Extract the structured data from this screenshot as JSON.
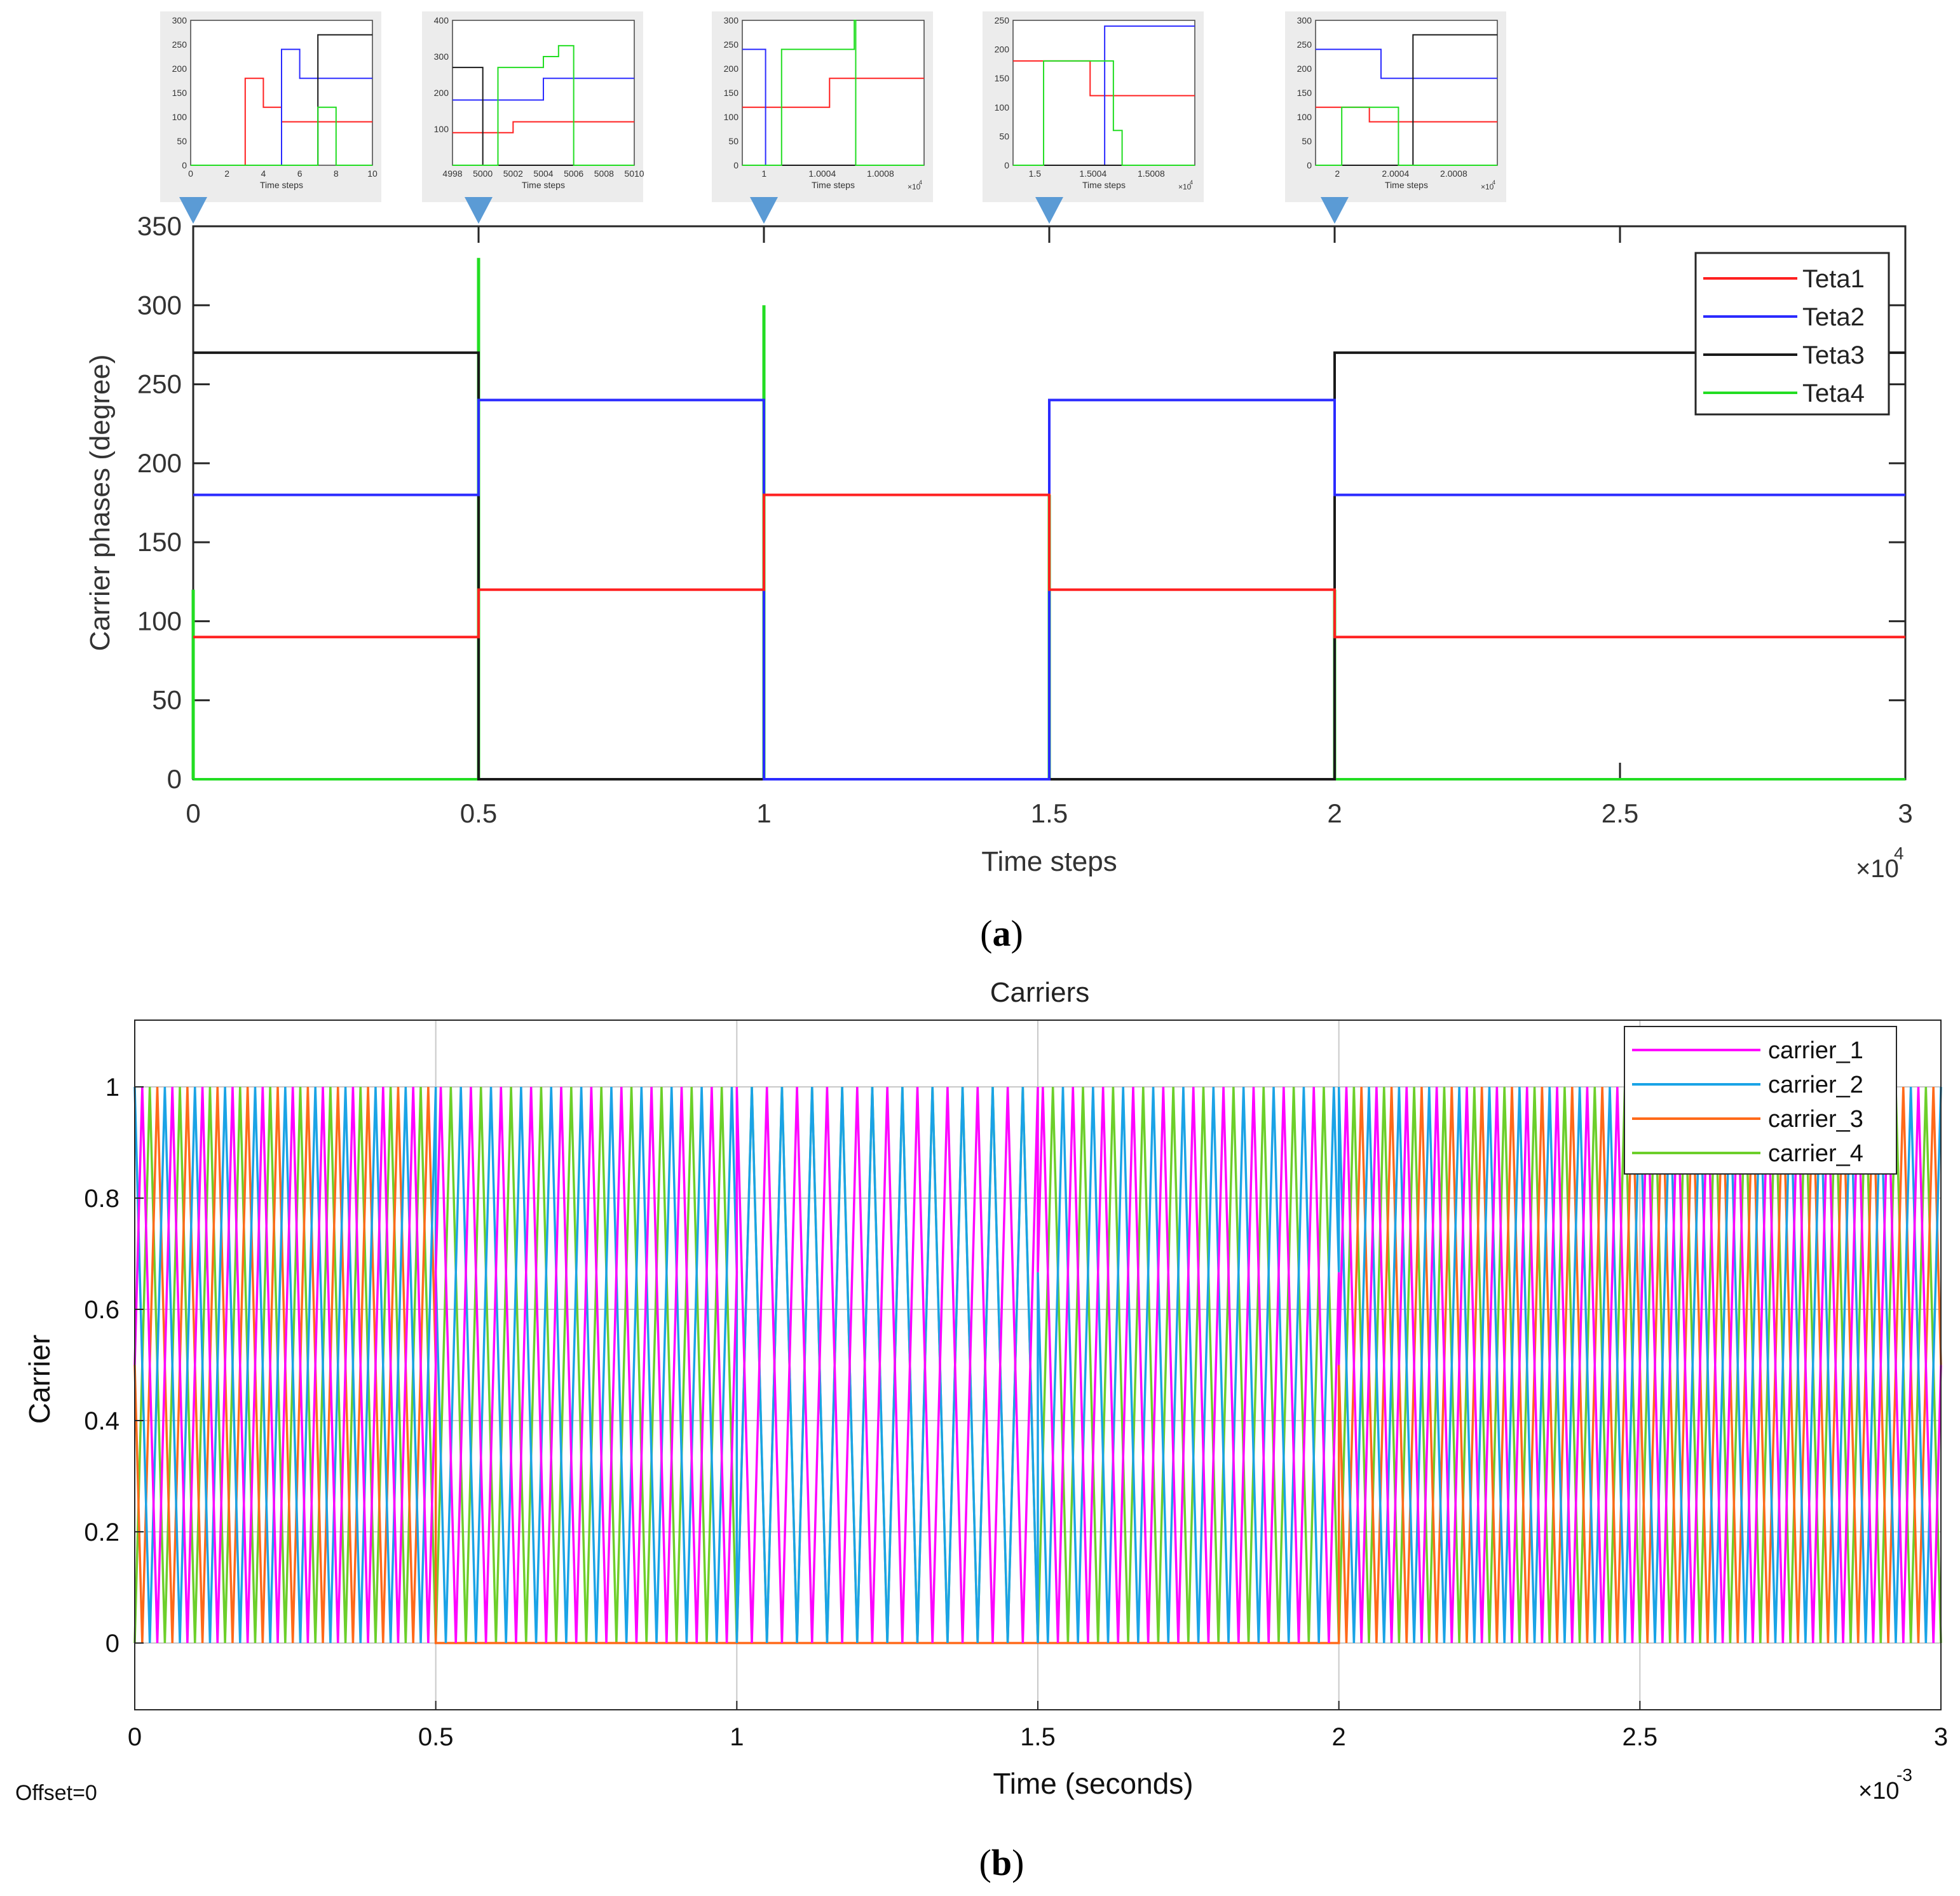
{
  "chart_data": [
    {
      "id": "a",
      "type": "line",
      "panel_label": "a",
      "title": "",
      "xlabel": "Time steps",
      "ylabel": "Carrier phases (degree)",
      "x_multiplier": "×10",
      "x_multiplier_exp": "4",
      "xlim": [
        0,
        3
      ],
      "ylim": [
        0,
        350
      ],
      "xticks": [
        "0",
        "0.5",
        "1",
        "1.5",
        "2",
        "2.5",
        "3"
      ],
      "yticks": [
        "0",
        "50",
        "100",
        "150",
        "200",
        "250",
        "300",
        "350"
      ],
      "grid": false,
      "legend_position": "top-right",
      "series": [
        {
          "name": "Teta1",
          "color": "#ff2020",
          "segments": [
            [
              0,
              0.5,
              90
            ],
            [
              0.5,
              1,
              120
            ],
            [
              1,
              1.5,
              180
            ],
            [
              1.5,
              2,
              120
            ],
            [
              2,
              3,
              90
            ]
          ]
        },
        {
          "name": "Teta2",
          "color": "#2b2bff",
          "segments": [
            [
              0,
              0.5,
              180
            ],
            [
              0.5,
              1,
              240
            ],
            [
              1,
              1.5,
              0
            ],
            [
              1.5,
              2,
              240
            ],
            [
              2,
              3,
              180
            ]
          ]
        },
        {
          "name": "Teta3",
          "color": "#1a1a1a",
          "segments": [
            [
              0,
              0.5,
              270
            ],
            [
              0.5,
              1,
              0
            ],
            [
              1,
              1.5,
              0
            ],
            [
              1.5,
              2,
              0
            ],
            [
              2,
              3,
              270
            ]
          ]
        },
        {
          "name": "Teta4",
          "color": "#22dd22",
          "segments": [
            [
              0,
              0.5,
              0
            ],
            [
              0.5,
              1,
              0
            ],
            [
              1,
              1.5,
              0
            ],
            [
              1.5,
              2,
              0
            ],
            [
              2,
              3,
              0
            ]
          ],
          "spikes": [
            [
              0,
              120
            ],
            [
              0.5,
              330
            ],
            [
              1,
              300
            ],
            [
              1.5,
              180
            ],
            [
              2,
              120
            ]
          ]
        }
      ],
      "insets": [
        {
          "at_x": 0,
          "xlabel": "Time steps",
          "x_multiplier": "",
          "xticks": [
            "0",
            "2",
            "4",
            "6",
            "8",
            "10"
          ],
          "yticks": [
            "0",
            "50",
            "100",
            "150",
            "200",
            "250",
            "300"
          ],
          "ylim": [
            0,
            300
          ],
          "traces": [
            {
              "series": "Teta1",
              "steps": [
                [
                  0,
                  0
                ],
                [
                  3,
                  180
                ],
                [
                  4,
                  120
                ],
                [
                  5,
                  90
                ],
                [
                  10,
                  90
                ]
              ]
            },
            {
              "series": "Teta2",
              "steps": [
                [
                  0,
                  0
                ],
                [
                  5,
                  240
                ],
                [
                  6,
                  180
                ],
                [
                  10,
                  180
                ]
              ]
            },
            {
              "series": "Teta3",
              "steps": [
                [
                  0,
                  0
                ],
                [
                  7,
                  270
                ],
                [
                  10,
                  270
                ]
              ]
            },
            {
              "series": "Teta4",
              "steps": [
                [
                  0,
                  0
                ],
                [
                  7,
                  120
                ],
                [
                  8,
                  0
                ],
                [
                  10,
                  0
                ]
              ]
            }
          ]
        },
        {
          "at_x": 0.5,
          "xlabel": "Time steps",
          "x_multiplier": "",
          "xticks": [
            "4998",
            "5000",
            "5002",
            "5004",
            "5006",
            "5008",
            "5010"
          ],
          "yticks": [
            "100",
            "200",
            "300",
            "400"
          ],
          "ylim": [
            0,
            400
          ],
          "traces": [
            {
              "series": "Teta1",
              "steps": [
                [
                  4998,
                  90
                ],
                [
                  5002,
                  120
                ],
                [
                  5010,
                  120
                ]
              ]
            },
            {
              "series": "Teta2",
              "steps": [
                [
                  4998,
                  180
                ],
                [
                  5004,
                  240
                ],
                [
                  5010,
                  240
                ]
              ]
            },
            {
              "series": "Teta3",
              "steps": [
                [
                  4998,
                  270
                ],
                [
                  5000,
                  0
                ],
                [
                  5010,
                  0
                ]
              ]
            },
            {
              "series": "Teta4",
              "steps": [
                [
                  4998,
                  0
                ],
                [
                  5001,
                  270
                ],
                [
                  5004,
                  300
                ],
                [
                  5005,
                  330
                ],
                [
                  5006,
                  0
                ],
                [
                  5010,
                  0
                ]
              ]
            }
          ]
        },
        {
          "at_x": 1,
          "xlabel": "Time steps",
          "x_multiplier": "×10",
          "x_multiplier_exp": "4",
          "xticks": [
            "1",
            "1.0004",
            "1.0008"
          ],
          "yticks": [
            "0",
            "50",
            "100",
            "150",
            "200",
            "250",
            "300"
          ],
          "ylim": [
            0,
            300
          ],
          "traces": [
            {
              "series": "Teta1",
              "steps": [
                [
                  0.99985,
                  120
                ],
                [
                  1.00045,
                  180
                ],
                [
                  1.0011,
                  180
                ]
              ]
            },
            {
              "series": "Teta2",
              "steps": [
                [
                  0.99985,
                  240
                ],
                [
                  1.00001,
                  0
                ],
                [
                  1.0011,
                  0
                ]
              ]
            },
            {
              "series": "Teta3",
              "steps": [
                [
                  0.99985,
                  0
                ],
                [
                  1.0011,
                  0
                ]
              ]
            },
            {
              "series": "Teta4",
              "steps": [
                [
                  0.99985,
                  0
                ],
                [
                  1.00012,
                  240
                ],
                [
                  1.00062,
                  300
                ],
                [
                  1.00063,
                  0
                ],
                [
                  1.0011,
                  0
                ]
              ]
            }
          ]
        },
        {
          "at_x": 1.5,
          "xlabel": "Time steps",
          "x_multiplier": "×10",
          "x_multiplier_exp": "4",
          "xticks": [
            "1.5",
            "1.5004",
            "1.5008"
          ],
          "yticks": [
            "0",
            "50",
            "100",
            "150",
            "200",
            "250"
          ],
          "ylim": [
            0,
            250
          ],
          "traces": [
            {
              "series": "Teta1",
              "steps": [
                [
                  1.49985,
                  180
                ],
                [
                  1.50038,
                  120
                ],
                [
                  1.5011,
                  120
                ]
              ]
            },
            {
              "series": "Teta2",
              "steps": [
                [
                  1.49985,
                  0
                ],
                [
                  1.50048,
                  240
                ],
                [
                  1.5011,
                  240
                ]
              ]
            },
            {
              "series": "Teta3",
              "steps": [
                [
                  1.49985,
                  0
                ],
                [
                  1.5011,
                  0
                ]
              ]
            },
            {
              "series": "Teta4",
              "steps": [
                [
                  1.49985,
                  0
                ],
                [
                  1.50006,
                  180
                ],
                [
                  1.50054,
                  60
                ],
                [
                  1.5006,
                  0
                ],
                [
                  1.5011,
                  0
                ]
              ]
            }
          ]
        },
        {
          "at_x": 2,
          "xlabel": "Time steps",
          "x_multiplier": "×10",
          "x_multiplier_exp": "4",
          "xticks": [
            "2",
            "2.0004",
            "2.0008"
          ],
          "yticks": [
            "0",
            "50",
            "100",
            "150",
            "200",
            "250",
            "300"
          ],
          "ylim": [
            0,
            300
          ],
          "traces": [
            {
              "series": "Teta1",
              "steps": [
                [
                  1.99985,
                  120
                ],
                [
                  2.00022,
                  90
                ],
                [
                  2.0011,
                  90
                ]
              ]
            },
            {
              "series": "Teta2",
              "steps": [
                [
                  1.99985,
                  240
                ],
                [
                  2.0003,
                  180
                ],
                [
                  2.0011,
                  180
                ]
              ]
            },
            {
              "series": "Teta3",
              "steps": [
                [
                  1.99985,
                  0
                ],
                [
                  2.00052,
                  270
                ],
                [
                  2.0011,
                  270
                ]
              ]
            },
            {
              "series": "Teta4",
              "steps": [
                [
                  1.99985,
                  0
                ],
                [
                  2.00003,
                  120
                ],
                [
                  2.00042,
                  0
                ],
                [
                  2.0011,
                  0
                ]
              ]
            }
          ]
        }
      ]
    },
    {
      "id": "b",
      "type": "line",
      "panel_label": "b",
      "title": "Carriers",
      "xlabel": "Time (seconds)",
      "ylabel": "Carrier",
      "x_multiplier": "×10",
      "x_multiplier_exp": "-3",
      "xlim": [
        0,
        3
      ],
      "ylim": [
        -0.12,
        1.12
      ],
      "xticks": [
        "0",
        "0.5",
        "1",
        "1.5",
        "2",
        "2.5",
        "3"
      ],
      "yticks": [
        "0",
        "0.2",
        "0.4",
        "0.6",
        "0.8",
        "1"
      ],
      "grid": true,
      "legend_position": "top-right",
      "footer_note": "Offset=0",
      "carrier_period": 0.05,
      "series": [
        {
          "name": "carrier_1",
          "color": "#ff00ff",
          "phase_schedule": [
            [
              0,
              0.5,
              90
            ],
            [
              0.5,
              1,
              120
            ],
            [
              1,
              1.5,
              180
            ],
            [
              1.5,
              2,
              120
            ],
            [
              2,
              3,
              90
            ]
          ]
        },
        {
          "name": "carrier_2",
          "color": "#1aa3e6",
          "phase_schedule": [
            [
              0,
              0.5,
              180
            ],
            [
              0.5,
              1,
              240
            ],
            [
              1,
              1.5,
              0
            ],
            [
              1.5,
              2,
              240
            ],
            [
              2,
              3,
              180
            ]
          ]
        },
        {
          "name": "carrier_3",
          "color": "#ff6a1a",
          "phase_schedule": [
            [
              0,
              0.5,
              270
            ],
            [
              0.5,
              2,
              "off"
            ],
            [
              2,
              3,
              270
            ]
          ]
        },
        {
          "name": "carrier_4",
          "color": "#6ccf2a",
          "phase_schedule": [
            [
              0,
              0.5,
              0
            ],
            [
              0.5,
              1,
              0
            ],
            [
              1,
              1.5,
              0
            ],
            [
              1.5,
              2,
              0
            ],
            [
              2,
              3,
              0
            ]
          ]
        }
      ]
    }
  ]
}
